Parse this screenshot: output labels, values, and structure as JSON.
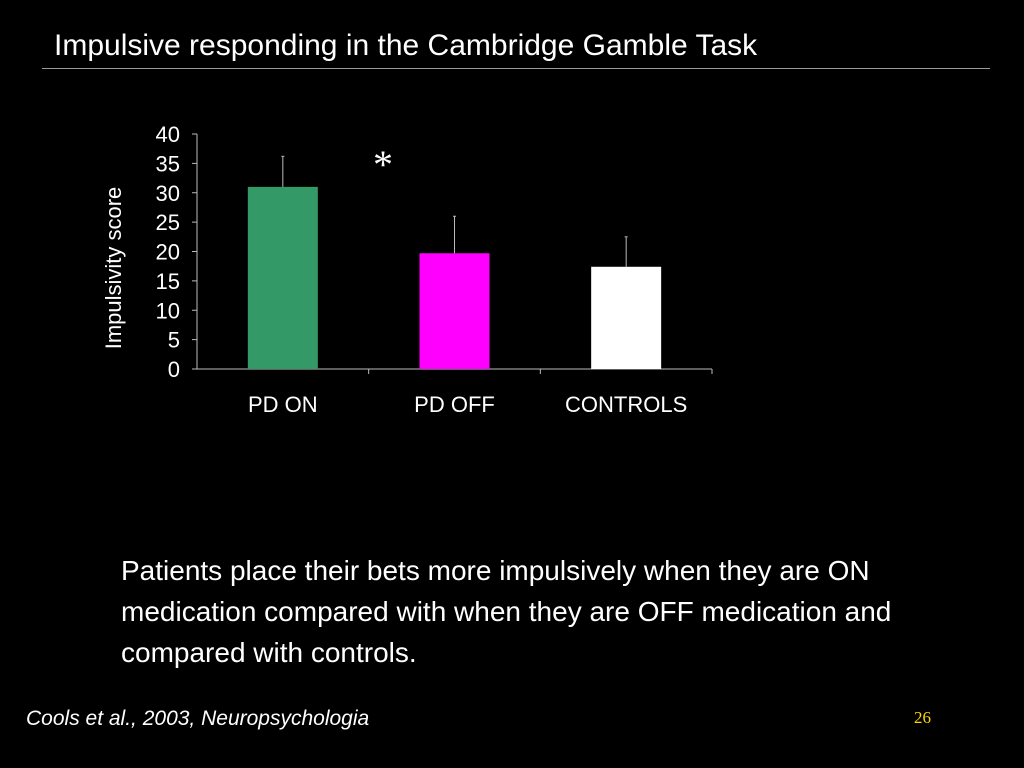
{
  "slide": {
    "title": "Impulsive responding in the Cambridge Gamble Task",
    "body": "Patients place their bets more impulsively when they are ON medication compared with when they are OFF medication and compared with controls.",
    "citation": "Cools et al., 2003, Neuropsychologia",
    "page_number": "26",
    "colors": {
      "background": "#000000",
      "text": "#ffffff",
      "page_number": "#ffd400"
    }
  },
  "chart_data": {
    "type": "bar",
    "title": "",
    "xlabel": "",
    "ylabel": "Impulsivity score",
    "ylim": [
      0,
      40
    ],
    "yticks": [
      "0",
      "5",
      "10",
      "15",
      "20",
      "25",
      "30",
      "35",
      "40"
    ],
    "categories": [
      "PD ON",
      "PD OFF",
      "CONTROLS"
    ],
    "values": [
      31,
      19.7,
      17.4
    ],
    "error_upper": [
      36.2,
      26,
      22.5
    ],
    "bar_colors": [
      "#339966",
      "#ff00ff",
      "#ffffff"
    ],
    "annotation": "*",
    "grid": false,
    "legend": "none"
  }
}
